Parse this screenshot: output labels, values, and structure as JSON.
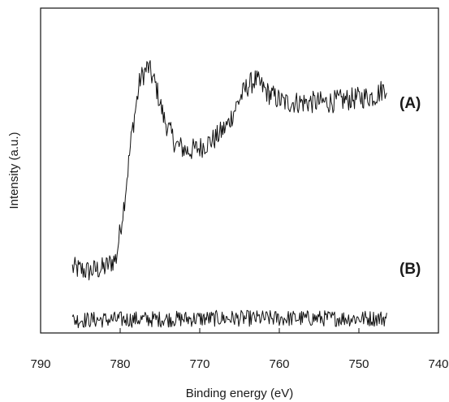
{
  "chart_data": {
    "type": "line",
    "xlabel": "Binding energy (eV)",
    "ylabel": "Intensity (a.u.)",
    "xlim": [
      790,
      740
    ],
    "x_reversed": true,
    "x_ticks": [
      790,
      780,
      770,
      760,
      750,
      740
    ],
    "y_tick_labels": false,
    "legend": "none",
    "series": [
      {
        "name": "(A)",
        "x_range": [
          786,
          746.5
        ],
        "noise": 0.035,
        "anchors": [
          [
            786,
            0.2
          ],
          [
            784,
            0.19
          ],
          [
            782,
            0.2
          ],
          [
            780.5,
            0.23
          ],
          [
            779.5,
            0.4
          ],
          [
            778.5,
            0.62
          ],
          [
            777.5,
            0.78
          ],
          [
            776.5,
            0.82
          ],
          [
            775.5,
            0.76
          ],
          [
            774.5,
            0.66
          ],
          [
            773,
            0.58
          ],
          [
            771.5,
            0.56
          ],
          [
            770,
            0.57
          ],
          [
            768,
            0.6
          ],
          [
            766.5,
            0.64
          ],
          [
            765,
            0.72
          ],
          [
            764,
            0.76
          ],
          [
            763,
            0.78
          ],
          [
            761.5,
            0.74
          ],
          [
            759.5,
            0.71
          ],
          [
            757,
            0.71
          ],
          [
            754,
            0.71
          ],
          [
            751,
            0.72
          ],
          [
            748,
            0.73
          ],
          [
            746.5,
            0.76
          ]
        ]
      },
      {
        "name": "(B)",
        "x_range": [
          786,
          746.5
        ],
        "noise": 0.025,
        "anchors": [
          [
            786,
            0.04
          ],
          [
            766,
            0.045
          ],
          [
            746.5,
            0.045
          ]
        ]
      }
    ]
  }
}
